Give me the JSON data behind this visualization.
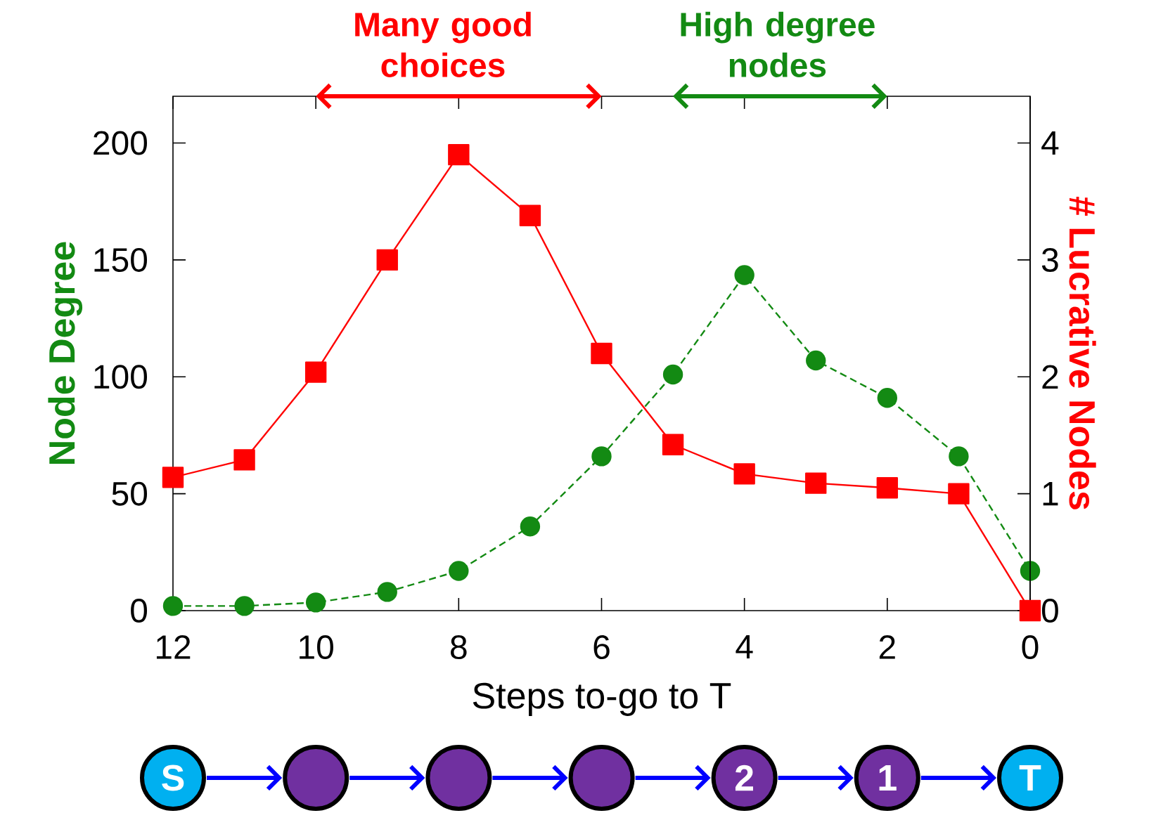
{
  "chart_data": {
    "type": "line",
    "xlabel": "Steps to-go to T",
    "ylabel": "Node Degree",
    "y2label": "# Lucrative Nodes",
    "annotations": [
      "Many good choices",
      "High degree nodes",
      "S",
      "2",
      "1",
      "T"
    ],
    "xlim": [
      12,
      0
    ],
    "xticks": [
      12,
      10,
      8,
      6,
      4,
      2,
      0
    ],
    "ylim": [
      0,
      220
    ],
    "yticks": [
      0,
      50,
      100,
      150,
      200
    ],
    "y2lim": [
      0,
      4.4
    ],
    "y2ticks": [
      0,
      1,
      2,
      3,
      4
    ],
    "x": [
      12,
      11,
      10,
      9,
      8,
      7,
      6,
      5,
      4,
      3,
      2,
      1,
      0
    ],
    "series": [
      {
        "color": "#138a13",
        "marker": "circle",
        "line_style": "dashed",
        "values": [
          2,
          2,
          3.5,
          8,
          17,
          36,
          66,
          101,
          143.5,
          107,
          91,
          66,
          17
        ]
      },
      {
        "color": "#ff0000",
        "marker": "square",
        "line_style": "solid",
        "axis": "y2",
        "values": [
          1.14,
          1.29,
          2.04,
          3.0,
          3.9,
          3.38,
          2.2,
          1.42,
          1.17,
          1.09,
          1.05,
          1.0,
          0
        ]
      }
    ],
    "grid": false
  }
}
